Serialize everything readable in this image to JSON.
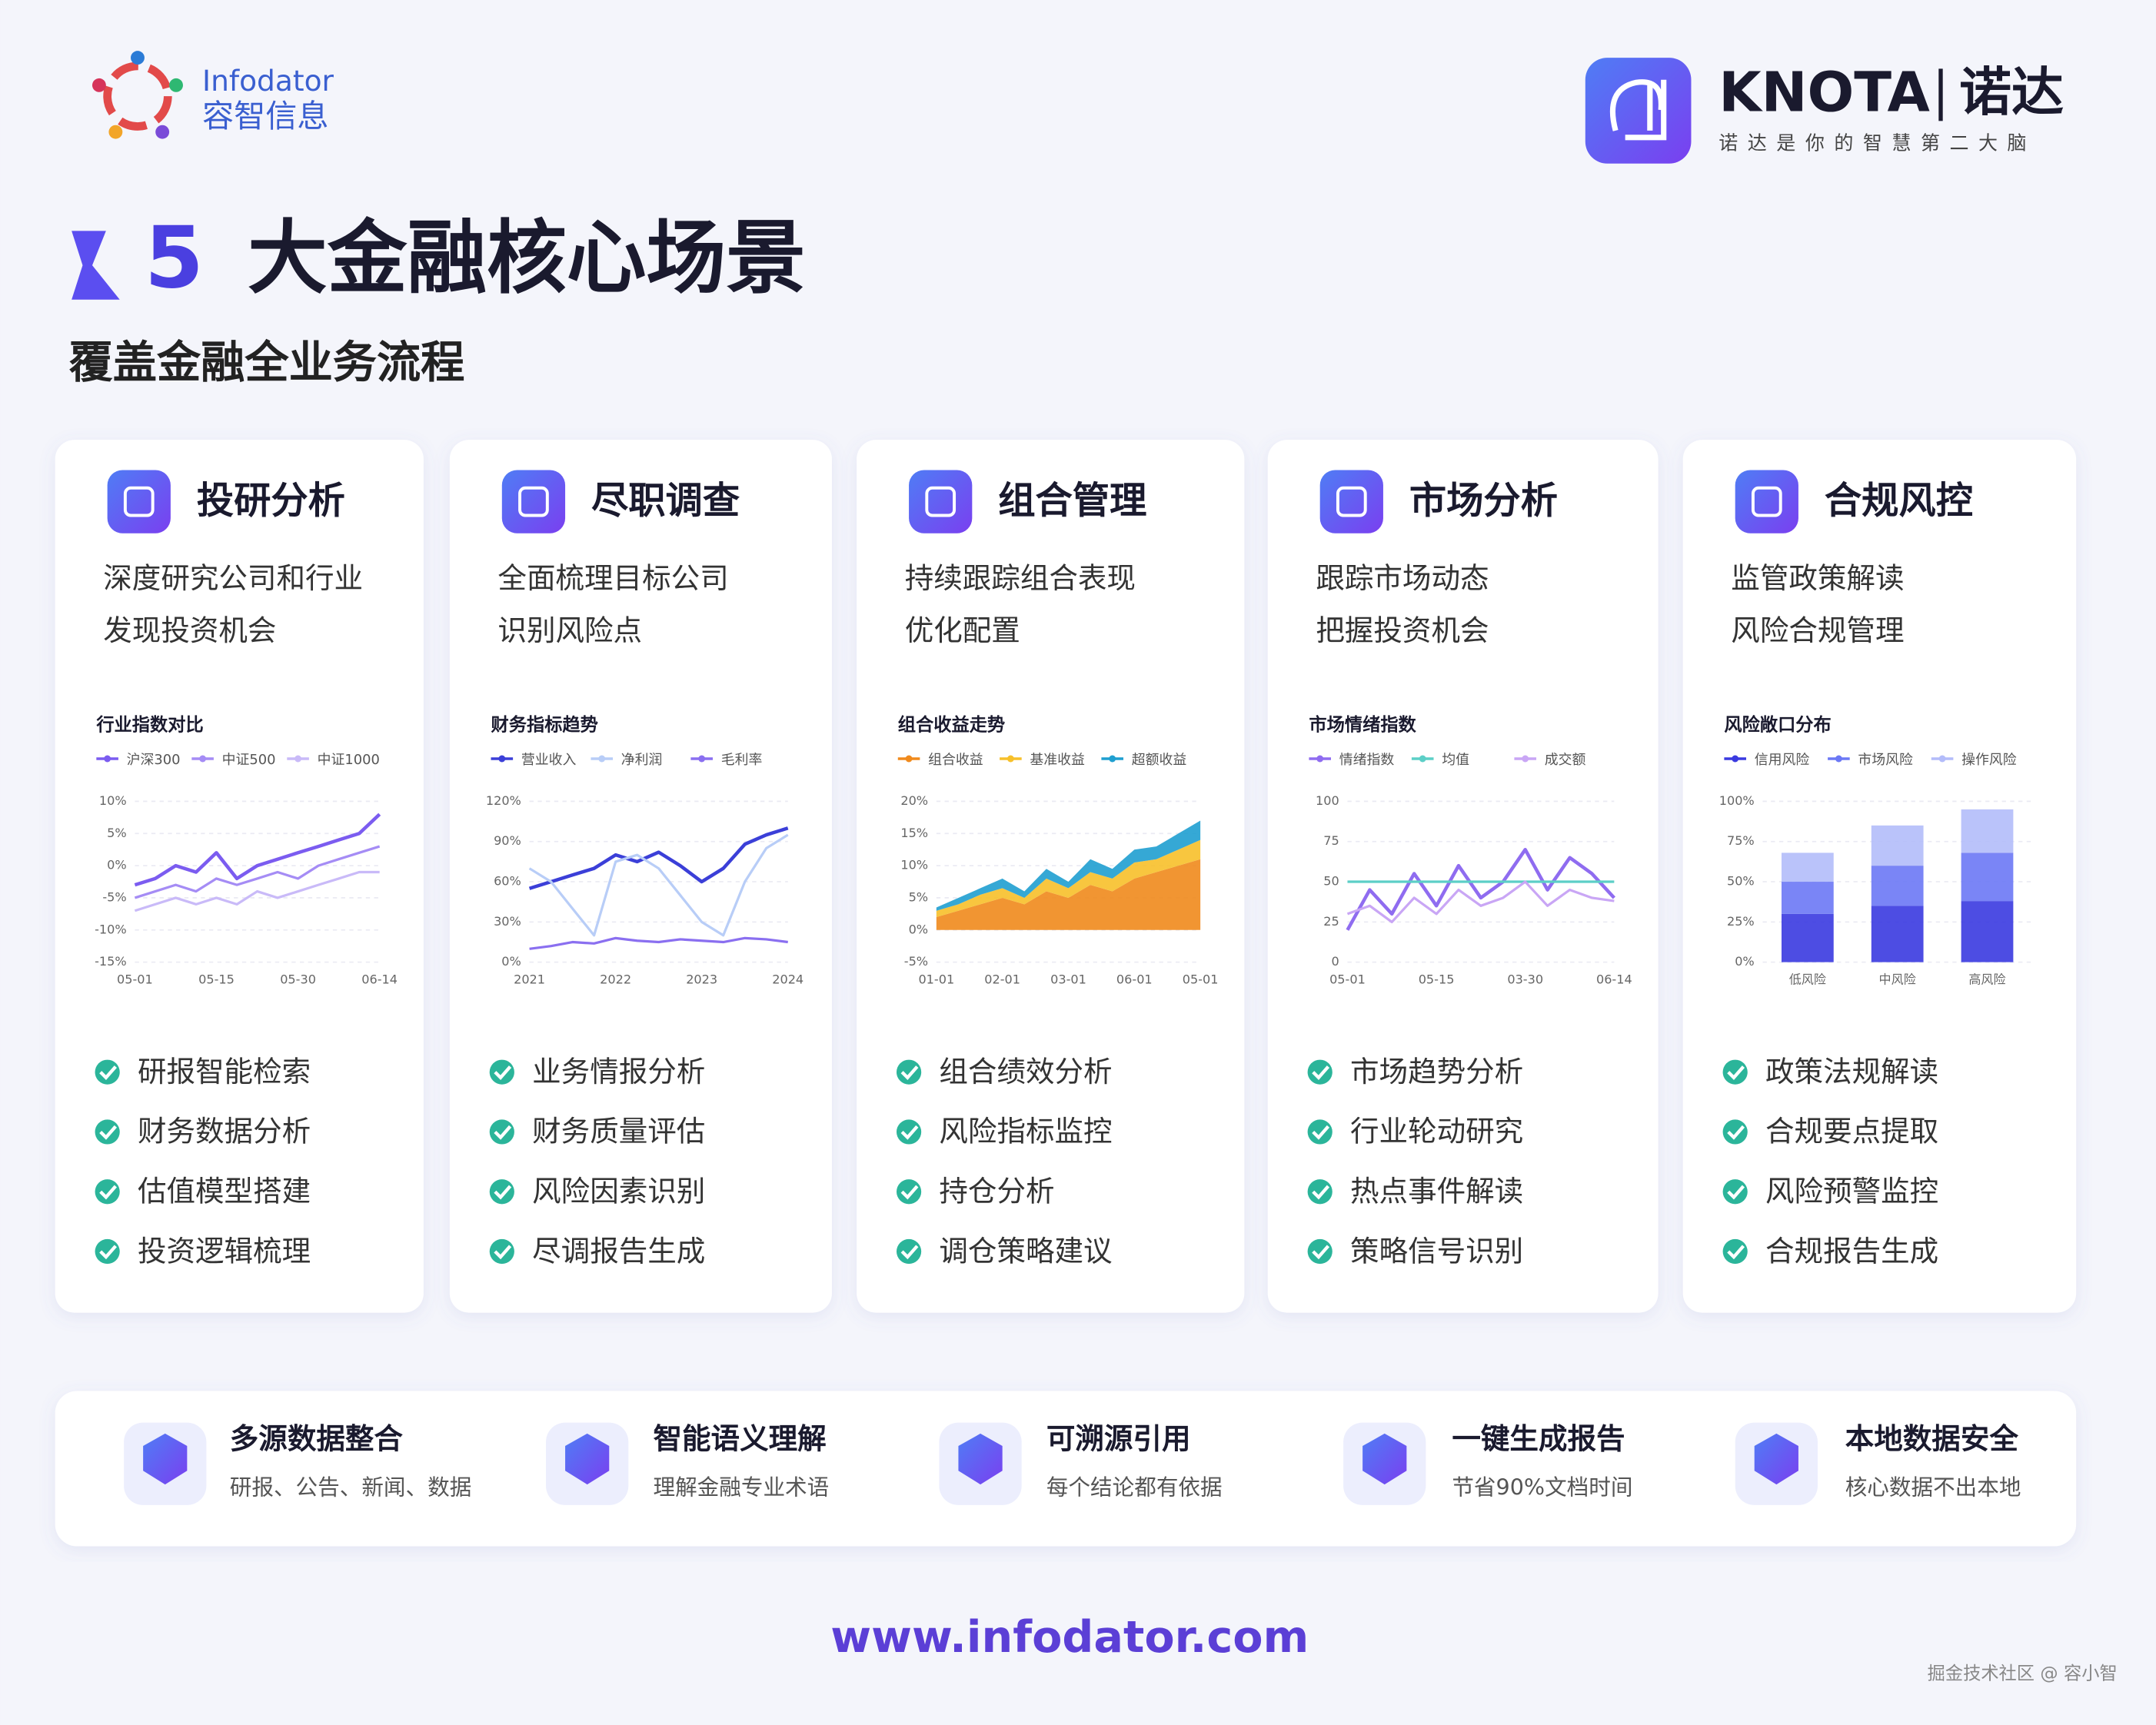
{
  "header": {
    "brand_left": {
      "name": "Infodator",
      "name_cn": "容智信息"
    },
    "brand_right": {
      "name": "KNOTA",
      "name_cn": "诺达",
      "slogan": "诺达是你的智慧第二大脑"
    }
  },
  "title": {
    "number": "5",
    "text": "大金融核心场景",
    "subtitle": "覆盖金融全业务流程"
  },
  "cards": [
    {
      "title": "投研分析",
      "desc": [
        "深度研究公司和行业",
        "发现投资机会"
      ],
      "chart_data": {
        "type": "line",
        "title": "行业指数对比",
        "categories": [
          "05-01",
          null,
          null,
          null,
          "05-15",
          null,
          null,
          null,
          "05-30",
          null,
          null,
          null,
          "06-14"
        ],
        "series": [
          {
            "name": "沪深300",
            "color": "#7b5cf0",
            "values": [
              -3,
              -2,
              0,
              -1,
              2,
              -2,
              0,
              1,
              2,
              3,
              4,
              5,
              8
            ]
          },
          {
            "name": "中证500",
            "color": "#a58cf5",
            "values": [
              -5,
              -4,
              -3,
              -4,
              -2,
              -3,
              -2,
              -1,
              -2,
              0,
              1,
              2,
              3
            ]
          },
          {
            "name": "中证1000",
            "color": "#c9baf8",
            "values": [
              -7,
              -6,
              -5,
              -6,
              -5,
              -6,
              -4,
              -5,
              -4,
              -3,
              -2,
              -1,
              -1
            ]
          }
        ],
        "ylim": [
          -15,
          10
        ],
        "yticks": [
          {
            "value": 10,
            "label": "10%"
          },
          {
            "value": 5,
            "label": "5%"
          },
          {
            "value": 0,
            "label": "0%"
          },
          {
            "value": -5,
            "label": "-5%"
          },
          {
            "value": -10,
            "label": "-10%"
          },
          {
            "value": -15,
            "label": "-15%"
          }
        ],
        "grid": true
      },
      "features": [
        "研报智能检索",
        "财务数据分析",
        "估值模型搭建",
        "投资逻辑梳理"
      ]
    },
    {
      "title": "尽职调查",
      "desc": [
        "全面梳理目标公司",
        "识别风险点"
      ],
      "chart_data": {
        "type": "line",
        "title": "财务指标趋势",
        "categories": [
          "2021",
          null,
          null,
          null,
          "2022",
          null,
          null,
          null,
          "2023",
          null,
          null,
          null,
          "2024"
        ],
        "series": [
          {
            "name": "营业收入",
            "color": "#3b3fd8",
            "values": [
              55,
              60,
              65,
              70,
              80,
              75,
              82,
              72,
              60,
              70,
              88,
              95,
              100
            ]
          },
          {
            "name": "净利润",
            "color": "#b8cdf7",
            "values": [
              70,
              60,
              40,
              20,
              75,
              80,
              70,
              50,
              30,
              20,
              60,
              85,
              95
            ]
          },
          {
            "name": "毛利率",
            "color": "#8a6ff0",
            "values": [
              10,
              12,
              15,
              14,
              18,
              16,
              15,
              17,
              16,
              15,
              18,
              17,
              15
            ]
          }
        ],
        "ylim": [
          0,
          120
        ],
        "yticks": [
          {
            "value": 120,
            "label": "120%"
          },
          {
            "value": 90,
            "label": "90%"
          },
          {
            "value": 60,
            "label": "60%"
          },
          {
            "value": 30,
            "label": "30%"
          },
          {
            "value": 0,
            "label": "0%"
          }
        ],
        "grid": true
      },
      "features": [
        "业务情报分析",
        "财务质量评估",
        "风险因素识别",
        "尽调报告生成"
      ]
    },
    {
      "title": "组合管理",
      "desc": [
        "持续跟踪组合表现",
        "优化配置"
      ],
      "chart_data": {
        "type": "area",
        "title": "组合收益走势",
        "categories": [
          "01-01",
          null,
          null,
          "02-01",
          null,
          null,
          "03-01",
          null,
          null,
          "06-01",
          null,
          null,
          "05-01"
        ],
        "series": [
          {
            "name": "组合收益",
            "color": "#f08a1c",
            "values": [
              2,
              3,
              4,
              5,
              4,
              6,
              5,
              7,
              6,
              8,
              9,
              10,
              11
            ]
          },
          {
            "name": "基准收益",
            "color": "#f7c02a",
            "values": [
              1,
              1,
              1.5,
              1.5,
              1,
              2,
              1.5,
              2,
              2,
              2.5,
              2,
              2.5,
              3
            ]
          },
          {
            "name": "超额收益",
            "color": "#1f9fd0",
            "values": [
              0.5,
              1,
              1,
              1.5,
              1,
              1.5,
              1,
              2,
              1.5,
              2,
              2,
              2.5,
              3
            ]
          }
        ],
        "ylim": [
          -5,
          20
        ],
        "yticks": [
          {
            "value": 20,
            "label": "20%"
          },
          {
            "value": 15,
            "label": "15%"
          },
          {
            "value": 10,
            "label": "10%"
          },
          {
            "value": 5,
            "label": "5%"
          },
          {
            "value": 0,
            "label": "0%"
          },
          {
            "value": -5,
            "label": "-5%"
          }
        ],
        "grid": true
      },
      "features": [
        "组合绩效分析",
        "风险指标监控",
        "持仓分析",
        "调仓策略建议"
      ]
    },
    {
      "title": "市场分析",
      "desc": [
        "跟踪市场动态",
        "把握投资机会"
      ],
      "chart_data": {
        "type": "line",
        "title": "市场情绪指数",
        "categories": [
          "05-01",
          null,
          null,
          null,
          "05-15",
          null,
          null,
          null,
          "03-30",
          null,
          null,
          null,
          "06-14"
        ],
        "series": [
          {
            "name": "情绪指数",
            "color": "#8f6cf0",
            "values": [
              20,
              45,
              30,
              55,
              35,
              60,
              40,
              50,
              70,
              45,
              65,
              55,
              40
            ]
          },
          {
            "name": "均值",
            "color": "#5ccfc7",
            "values": [
              50,
              50,
              50,
              50,
              50,
              50,
              50,
              50,
              50,
              50,
              50,
              50,
              50
            ]
          },
          {
            "name": "成交额",
            "color": "#c9a6f5",
            "values": [
              30,
              35,
              25,
              40,
              30,
              45,
              35,
              40,
              50,
              35,
              45,
              40,
              38
            ]
          }
        ],
        "ylim": [
          0,
          100
        ],
        "yticks": [
          100,
          75,
          50,
          25,
          0
        ],
        "grid": true
      },
      "features": [
        "市场趋势分析",
        "行业轮动研究",
        "热点事件解读",
        "策略信号识别"
      ]
    },
    {
      "title": "合规风控",
      "desc": [
        "监管政策解读",
        "风险合规管理"
      ],
      "chart_data": {
        "type": "bar",
        "title": "风险敞口分布",
        "categories": [
          "低风险",
          "中风险",
          "高风险"
        ],
        "series": [
          {
            "name": "信用风险",
            "color": "#3a3ae0",
            "values": [
              30,
              35,
              38
            ]
          },
          {
            "name": "市场风险",
            "color": "#6b78f5",
            "values": [
              20,
              25,
              30
            ]
          },
          {
            "name": "操作风险",
            "color": "#b3bcfa",
            "values": [
              18,
              25,
              27
            ]
          }
        ],
        "ylim": [
          0,
          100
        ],
        "yticks": [
          {
            "value": 100,
            "label": "100%"
          },
          {
            "value": 75,
            "label": "75%"
          },
          {
            "value": 50,
            "label": "50%"
          },
          {
            "value": 25,
            "label": "25%"
          },
          {
            "value": 0,
            "label": "0%"
          }
        ],
        "grid": true
      },
      "features": [
        "政策法规解读",
        "合规要点提取",
        "风险预警监控",
        "合规报告生成"
      ]
    }
  ],
  "capabilities": [
    {
      "title": "多源数据整合",
      "desc": "研报、公告、新闻、数据"
    },
    {
      "title": "智能语义理解",
      "desc": "理解金融专业术语"
    },
    {
      "title": "可溯源引用",
      "desc": "每个结论都有依据"
    },
    {
      "title": "一键生成报告",
      "desc": "节省90%文档时间"
    },
    {
      "title": "本地数据安全",
      "desc": "核心数据不出本地"
    }
  ],
  "footer": {
    "url": "www.infodator.com",
    "watermark": "掘金技术社区 @ 容小智"
  }
}
